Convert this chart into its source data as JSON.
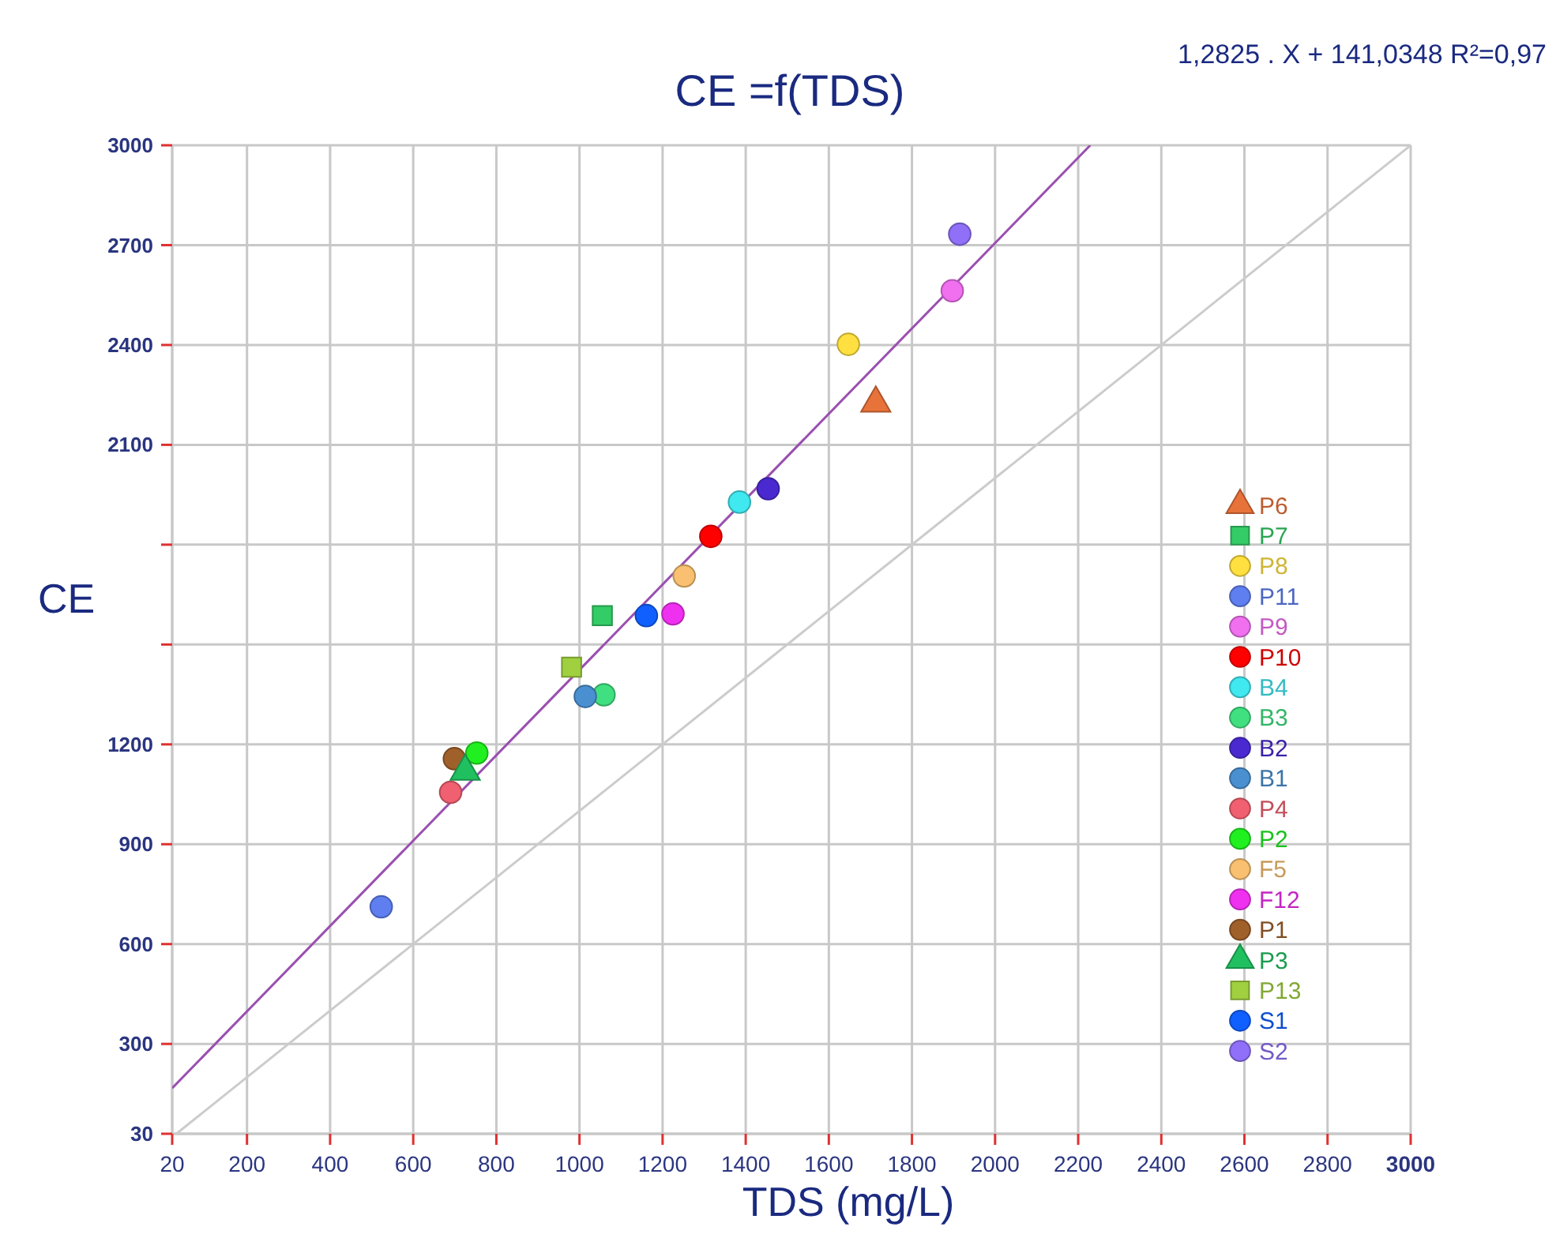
{
  "chart_data": {
    "type": "scatter",
    "title": "CE  =f(TDS)",
    "annotations": [
      "1,2825 . X + 141,0348   R²=0,97"
    ],
    "xlabel": "TDS (mg/L)",
    "ylabel": "CE",
    "xlim": [
      20,
      3000
    ],
    "xticks": [
      20,
      200,
      400,
      600,
      800,
      1000,
      1200,
      1400,
      1600,
      1800,
      2000,
      2200,
      2400,
      2600,
      2800,
      3000
    ],
    "ylim": [
      30,
      3000
    ],
    "yticks": [
      30,
      300,
      600,
      900,
      1200,
      {
        "value": 1500,
        "label": null
      },
      {
        "value": 1800,
        "label": null
      },
      2100,
      2400,
      2700,
      3000
    ],
    "grid": true,
    "legend": "right",
    "series": [
      {
        "type": "line",
        "color": "#9a50b0",
        "x": [
          20,
          2229
        ],
        "values": [
          167,
          3000
        ]
      },
      {
        "type": "line",
        "color": "#cccccc",
        "x": [
          30,
          3000
        ],
        "values": [
          30,
          3000
        ]
      },
      {
        "name": "P6",
        "color": "#e8733a",
        "marker": "triangle",
        "x": [
          1713
        ],
        "values": [
          2225
        ]
      },
      {
        "name": "P7",
        "color": "#33cc66",
        "marker": "square",
        "x": [
          1055
        ],
        "values": [
          1587
        ]
      },
      {
        "name": "P8",
        "color": "#ffe040",
        "marker": "circle",
        "x": [
          1647
        ],
        "values": [
          2402
        ]
      },
      {
        "name": "P11",
        "color": "#5f7ff0",
        "marker": "circle",
        "x": [
          523
        ],
        "values": [
          712
        ]
      },
      {
        "name": "P9",
        "color": "#f070f0",
        "marker": "circle",
        "x": [
          1897
        ],
        "values": [
          2563
        ]
      },
      {
        "name": "P10",
        "color": "#ff0000",
        "marker": "circle",
        "x": [
          1316
        ],
        "values": [
          1825
        ]
      },
      {
        "name": "B4",
        "color": "#40e8f0",
        "marker": "circle",
        "x": [
          1385
        ],
        "values": [
          1928
        ]
      },
      {
        "name": "B3",
        "color": "#40e080",
        "marker": "circle",
        "x": [
          1059
        ],
        "values": [
          1349
        ]
      },
      {
        "name": "B2",
        "color": "#4a2ad0",
        "marker": "circle",
        "x": [
          1454
        ],
        "values": [
          1968
        ]
      },
      {
        "name": "B1",
        "color": "#4a90d0",
        "marker": "circle",
        "x": [
          1014
        ],
        "values": [
          1344
        ]
      },
      {
        "name": "P4",
        "color": "#f06070",
        "marker": "circle",
        "x": [
          690
        ],
        "values": [
          1056
        ]
      },
      {
        "name": "P2",
        "color": "#20f020",
        "marker": "circle",
        "x": [
          753
        ],
        "values": [
          1174
        ]
      },
      {
        "name": "F5",
        "color": "#f8c070",
        "marker": "circle",
        "x": [
          1252
        ],
        "values": [
          1706
        ]
      },
      {
        "name": "F12",
        "color": "#f030f0",
        "marker": "circle",
        "x": [
          1225
        ],
        "values": [
          1592
        ]
      },
      {
        "name": "P1",
        "color": "#a0602a",
        "marker": "circle",
        "x": [
          699
        ],
        "values": [
          1157
        ]
      },
      {
        "name": "P3",
        "color": "#20c060",
        "marker": "triangle",
        "x": [
          725
        ],
        "values": [
          1119
        ]
      },
      {
        "name": "P13",
        "color": "#a0d040",
        "marker": "square",
        "x": [
          981
        ],
        "values": [
          1432
        ]
      },
      {
        "name": "S1",
        "color": "#1060ff",
        "marker": "circle",
        "x": [
          1161
        ],
        "values": [
          1587
        ]
      },
      {
        "name": "S2",
        "color": "#9070f8",
        "marker": "circle",
        "x": [
          1915
        ],
        "values": [
          2733
        ]
      }
    ]
  }
}
